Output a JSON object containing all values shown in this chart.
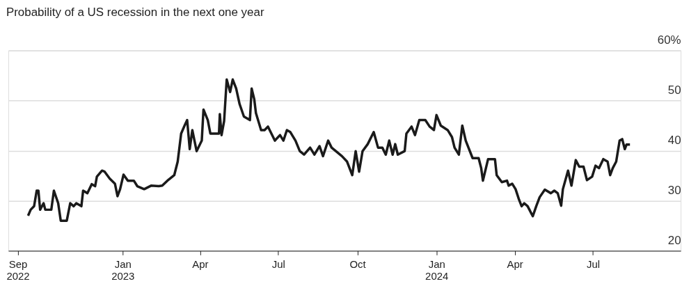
{
  "chart_data": {
    "type": "line",
    "title": "Probability of a US recession in the next one year",
    "x": [
      "2022-09-13",
      "2022-09-16",
      "2022-09-20",
      "2022-09-23",
      "2022-09-25",
      "2022-09-27",
      "2022-10-01",
      "2022-10-03",
      "2022-10-10",
      "2022-10-13",
      "2022-10-18",
      "2022-10-21",
      "2022-10-28",
      "2022-11-01",
      "2022-11-05",
      "2022-11-08",
      "2022-11-14",
      "2022-11-16",
      "2022-11-21",
      "2022-11-26",
      "2022-11-30",
      "2022-12-02",
      "2022-12-08",
      "2022-12-11",
      "2022-12-17",
      "2022-12-23",
      "2022-12-26",
      "2022-12-29",
      "2023-01-02",
      "2023-01-07",
      "2023-01-14",
      "2023-01-18",
      "2023-01-26",
      "2023-02-03",
      "2023-02-12",
      "2023-02-16",
      "2023-02-22",
      "2023-03-02",
      "2023-03-06",
      "2023-03-10",
      "2023-03-14",
      "2023-03-17",
      "2023-03-20",
      "2023-03-23",
      "2023-03-28",
      "2023-04-03",
      "2023-04-05",
      "2023-04-10",
      "2023-04-13",
      "2023-04-23",
      "2023-04-24",
      "2023-04-26",
      "2023-04-29",
      "2023-05-02",
      "2023-05-06",
      "2023-05-09",
      "2023-05-13",
      "2023-05-17",
      "2023-05-22",
      "2023-05-29",
      "2023-05-31",
      "2023-06-03",
      "2023-06-05",
      "2023-06-11",
      "2023-06-15",
      "2023-06-19",
      "2023-06-23",
      "2023-06-27",
      "2023-07-03",
      "2023-07-07",
      "2023-07-11",
      "2023-07-15",
      "2023-07-21",
      "2023-07-26",
      "2023-07-31",
      "2023-08-07",
      "2023-08-12",
      "2023-08-18",
      "2023-08-22",
      "2023-08-28",
      "2023-09-01",
      "2023-09-13",
      "2023-09-19",
      "2023-09-25",
      "2023-09-29",
      "2023-10-03",
      "2023-10-07",
      "2023-10-13",
      "2023-10-20",
      "2023-10-25",
      "2023-10-30",
      "2023-11-03",
      "2023-11-07",
      "2023-11-11",
      "2023-11-14",
      "2023-11-17",
      "2023-11-25",
      "2023-11-27",
      "2023-12-03",
      "2023-12-07",
      "2023-12-12",
      "2023-12-19",
      "2023-12-24",
      "2023-12-29",
      "2024-01-01",
      "2024-01-06",
      "2024-01-14",
      "2024-01-19",
      "2024-01-22",
      "2024-01-27",
      "2024-01-31",
      "2024-02-04",
      "2024-02-12",
      "2024-02-19",
      "2024-02-22",
      "2024-02-24",
      "2024-03-01",
      "2024-03-09",
      "2024-03-11",
      "2024-03-17",
      "2024-03-23",
      "2024-03-25",
      "2024-03-29",
      "2024-04-02",
      "2024-04-06",
      "2024-04-09",
      "2024-04-12",
      "2024-04-16",
      "2024-04-22",
      "2024-04-26",
      "2024-04-30",
      "2024-05-06",
      "2024-05-13",
      "2024-05-17",
      "2024-05-21",
      "2024-05-25",
      "2024-05-27",
      "2024-06-02",
      "2024-06-06",
      "2024-06-11",
      "2024-06-15",
      "2024-06-20",
      "2024-06-24",
      "2024-06-30",
      "2024-07-04",
      "2024-07-08",
      "2024-07-13",
      "2024-07-18",
      "2024-07-21",
      "2024-07-24",
      "2024-07-28",
      "2024-08-01",
      "2024-08-04",
      "2024-08-07",
      "2024-08-09",
      "2024-08-13"
    ],
    "series": [
      {
        "color": "#1a1a1a",
        "values": [
          27.0,
          28.2,
          28.9,
          32.0,
          32.0,
          28.2,
          29.5,
          28.2,
          28.2,
          32.0,
          29.5,
          26.0,
          26.0,
          29.5,
          28.9,
          29.5,
          28.9,
          32.0,
          31.5,
          33.3,
          32.9,
          34.8,
          36.0,
          35.8,
          34.4,
          33.4,
          30.9,
          32.3,
          35.2,
          34.0,
          34.0,
          32.9,
          32.3,
          33.0,
          32.9,
          33.0,
          34.0,
          35.1,
          37.8,
          43.4,
          45.0,
          46.1,
          40.3,
          44.1,
          39.9,
          42.0,
          48.2,
          46.1,
          43.4,
          43.4,
          47.3,
          43.1,
          45.9,
          54.2,
          51.7,
          54.2,
          52.4,
          49.3,
          46.8,
          46.1,
          52.4,
          50.3,
          47.5,
          44.1,
          44.1,
          44.8,
          43.4,
          42.0,
          43.1,
          42.0,
          44.1,
          43.7,
          42.0,
          39.9,
          39.2,
          40.6,
          39.2,
          40.9,
          38.9,
          42.0,
          40.6,
          38.9,
          37.8,
          35.1,
          39.9,
          35.8,
          39.9,
          41.3,
          43.7,
          40.6,
          40.6,
          39.2,
          42.0,
          39.2,
          41.3,
          39.2,
          39.9,
          43.4,
          44.8,
          43.1,
          46.1,
          46.1,
          44.8,
          44.1,
          47.1,
          45.0,
          44.1,
          42.7,
          40.6,
          39.2,
          45.0,
          42.0,
          38.5,
          38.5,
          36.5,
          34.0,
          38.3,
          38.3,
          35.1,
          33.7,
          34.0,
          33.0,
          33.4,
          32.3,
          30.2,
          28.9,
          29.5,
          28.9,
          26.9,
          28.9,
          30.7,
          32.2,
          31.5,
          32.0,
          31.5,
          29.0,
          32.3,
          36.0,
          33.0,
          38.1,
          36.8,
          36.8,
          34.1,
          34.8,
          37.0,
          36.5,
          38.3,
          37.8,
          35.1,
          36.5,
          37.8,
          42.0,
          42.3,
          40.3,
          41.2,
          41.2
        ]
      }
    ],
    "xlim": [
      "2022-08-21",
      "2024-10-11"
    ],
    "xticks": [
      {
        "value": "2022-09-01",
        "label": "Sep 2022"
      },
      {
        "value": "2023-01-01",
        "label": "Jan 2023"
      },
      {
        "value": "2023-04-01",
        "label": "Apr"
      },
      {
        "value": "2023-07-01",
        "label": "Jul"
      },
      {
        "value": "2023-10-01",
        "label": "Oct"
      },
      {
        "value": "2024-01-01",
        "label": "Jan 2024"
      },
      {
        "value": "2024-04-01",
        "label": "Apr"
      },
      {
        "value": "2024-07-01",
        "label": "Jul"
      }
    ],
    "ylim": [
      20,
      60
    ],
    "yticks": [
      20,
      30,
      40,
      50,
      {
        "value": 60,
        "label": "60%"
      }
    ],
    "grid": "y",
    "line_style": "solid",
    "marker": "none"
  }
}
